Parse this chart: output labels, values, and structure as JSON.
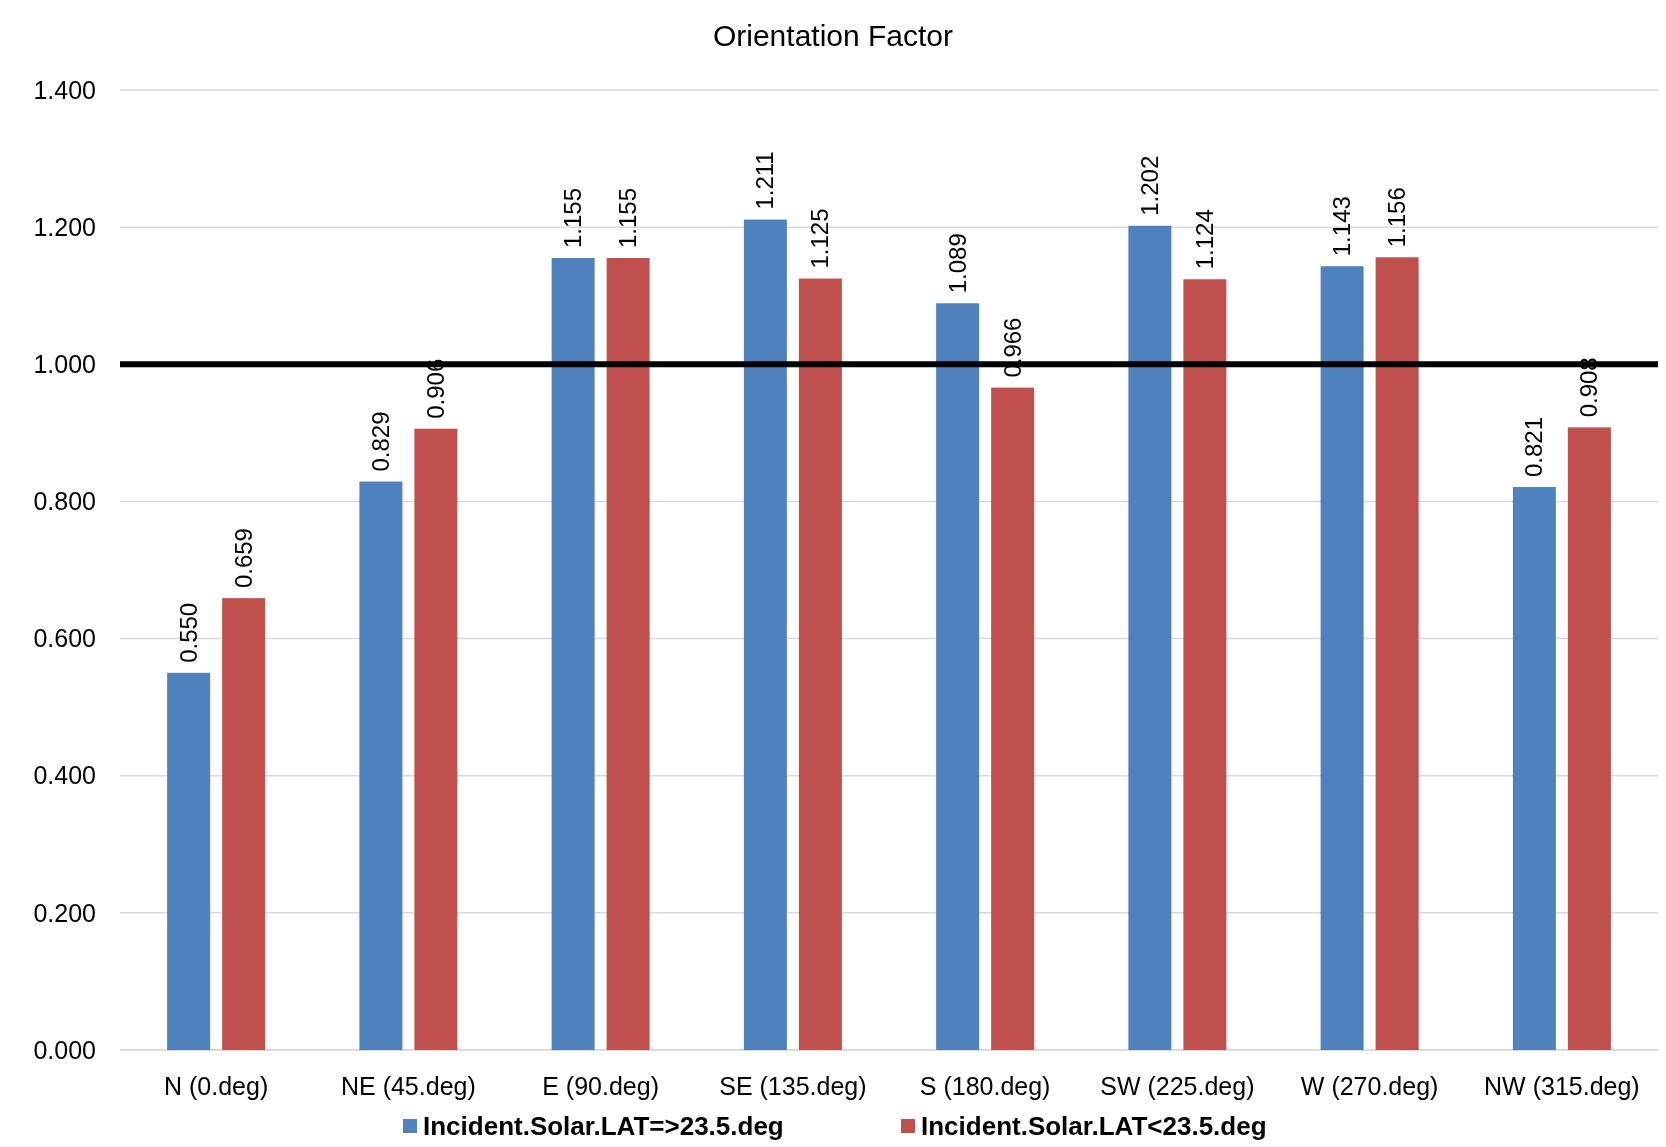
{
  "chart_data": {
    "type": "bar",
    "title": "Orientation Factor",
    "categories": [
      "N (0.deg)",
      "NE (45.deg)",
      "E (90.deg)",
      "SE (135.deg)",
      "S (180.deg)",
      "SW (225.deg)",
      "W (270.deg)",
      "NW (315.deg)"
    ],
    "series": [
      {
        "name": "Incident.Solar.LAT=>23.5.deg",
        "color": "#4f81bd",
        "values": [
          0.55,
          0.829,
          1.155,
          1.211,
          1.089,
          1.202,
          1.143,
          0.821
        ],
        "value_labels": [
          "0.550",
          "0.829",
          "1.155",
          "1.211",
          "1.089",
          "1.202",
          "1.143",
          "0.821"
        ]
      },
      {
        "name": "Incident.Solar.LAT<23.5.deg",
        "color": "#c0504d",
        "values": [
          0.659,
          0.906,
          1.155,
          1.125,
          0.966,
          1.124,
          1.156,
          0.908
        ],
        "value_labels": [
          "0.659",
          "0.906",
          "1.155",
          "1.125",
          "0.966",
          "1.124",
          "1.156",
          "0.908"
        ]
      }
    ],
    "ylim": [
      0,
      1.4
    ],
    "yticks": [
      {
        "value": 0,
        "label": "0.000"
      },
      {
        "value": 0.2,
        "label": "0.200"
      },
      {
        "value": 0.4,
        "label": "0.400"
      },
      {
        "value": 0.6,
        "label": "0.600"
      },
      {
        "value": 0.8,
        "label": "0.800"
      },
      {
        "value": 1,
        "label": "1.000"
      },
      {
        "value": 1.2,
        "label": "1.200"
      },
      {
        "value": 1.4,
        "label": "1.400"
      }
    ],
    "grid": "y",
    "legend": "bottom",
    "ref_lines": [
      {
        "axis": "y",
        "value": 1,
        "color": "#000000"
      }
    ]
  }
}
